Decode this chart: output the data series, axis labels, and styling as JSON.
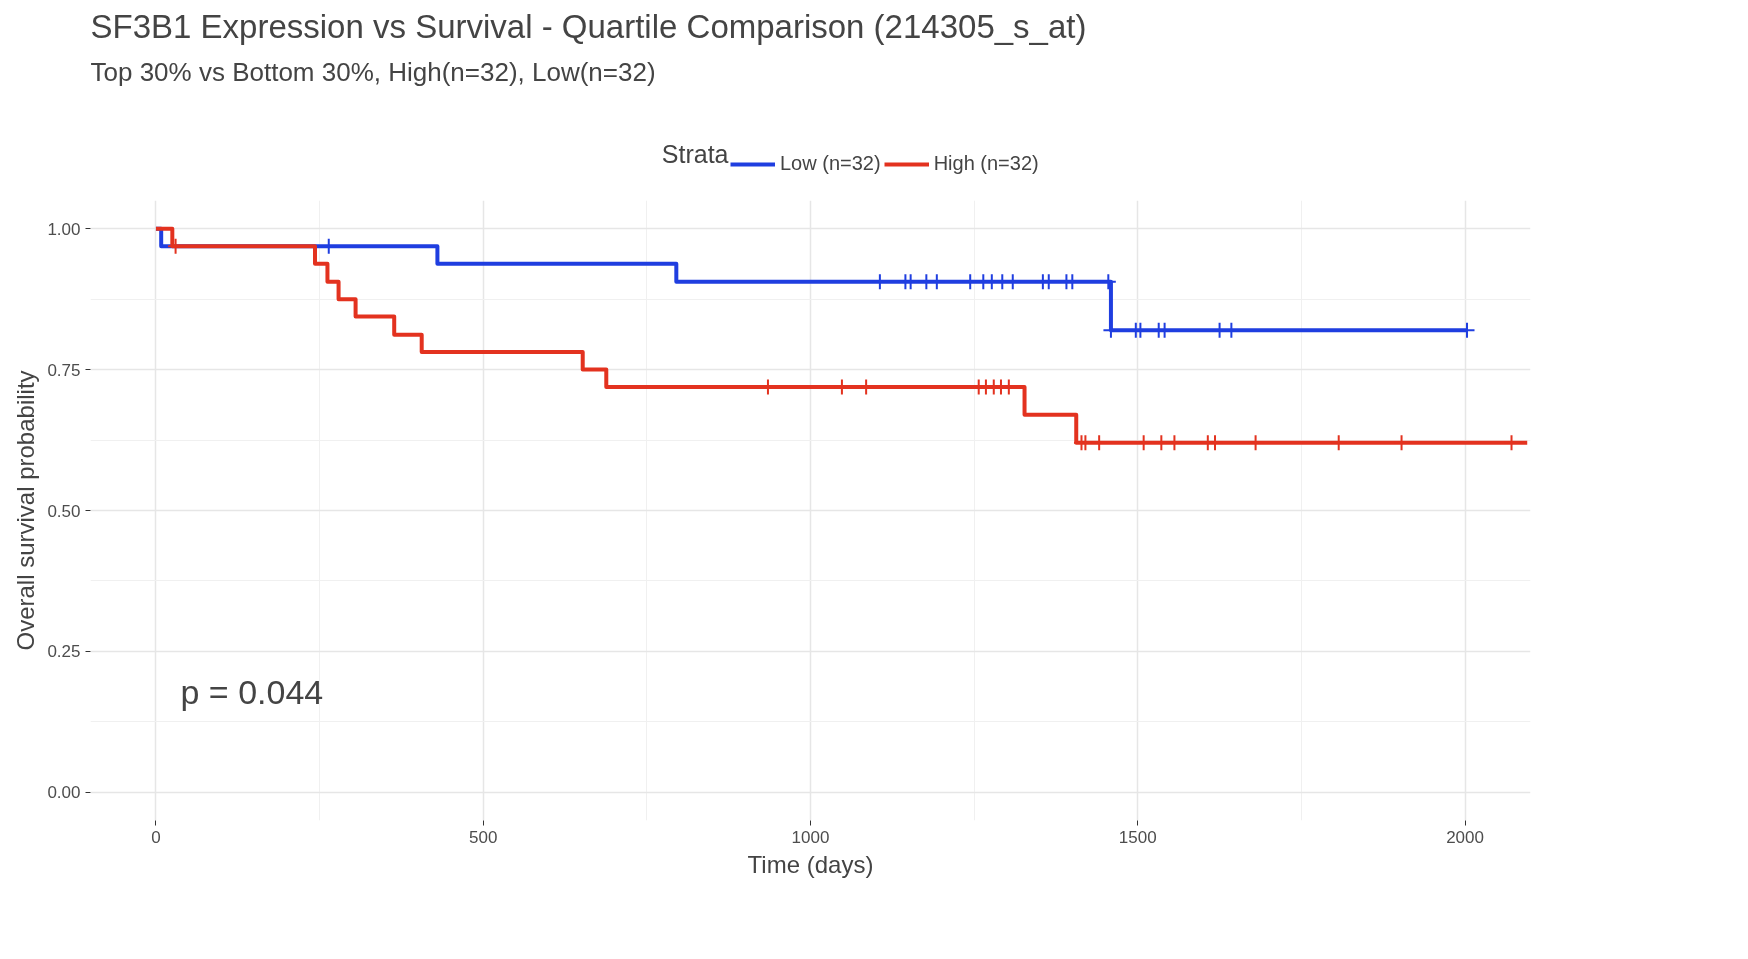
{
  "chart_data": {
    "type": "step",
    "title": "SF3B1 Expression vs Survival - Quartile Comparison (214305_s_at)",
    "subtitle": "Top 30% vs Bottom 30%, High(n=32), Low(n=32)",
    "xlabel": "Time (days)",
    "ylabel": "Overall survival probability",
    "legend_title": "Strata",
    "annotations": [
      "p = 0.044"
    ],
    "xlim": [
      -100,
      2100
    ],
    "ylim": [
      -0.05,
      1.05
    ],
    "xticks": [
      0,
      500,
      1000,
      1500,
      2000
    ],
    "yticks": [
      {
        "value": 0,
        "label": "0.00"
      },
      {
        "value": 0.25,
        "label": "0.25"
      },
      {
        "value": 0.5,
        "label": "0.50"
      },
      {
        "value": 0.75,
        "label": "0.75"
      },
      {
        "value": 1,
        "label": "1.00"
      }
    ],
    "grid": true,
    "legend": "top",
    "series": [
      {
        "name": "Low (n=32)",
        "color": "#1f3ee0",
        "x": [
          0,
          8,
          430,
          795,
          1459,
          2003
        ],
        "values": [
          1,
          0.969,
          0.938,
          0.906,
          0.82,
          0.82
        ]
      },
      {
        "name": "High (n=32)",
        "color": "#e3321f",
        "x": [
          0,
          25,
          243,
          262,
          279,
          305,
          364,
          406,
          652,
          688,
          1327,
          1406,
          2095
        ],
        "values": [
          1,
          0.969,
          0.938,
          0.906,
          0.875,
          0.844,
          0.812,
          0.781,
          0.75,
          0.719,
          0.67,
          0.62,
          0.62
        ]
      },
      {
        "type": "scatter",
        "marker": "cross",
        "color": "#1f3ee0",
        "x": [
          264,
          1106,
          1145,
          1153,
          1177,
          1193,
          1244,
          1264,
          1277,
          1293,
          1309,
          1355,
          1364,
          1391,
          1400,
          1455,
          1459,
          1497,
          1504,
          1532,
          1541,
          1625,
          1643,
          2003
        ],
        "values": [
          0.969,
          0.906,
          0.906,
          0.906,
          0.906,
          0.906,
          0.906,
          0.906,
          0.906,
          0.906,
          0.906,
          0.906,
          0.906,
          0.906,
          0.906,
          0.906,
          0.82,
          0.82,
          0.82,
          0.82,
          0.82,
          0.82,
          0.82,
          0.82
        ]
      },
      {
        "type": "scatter",
        "marker": "cross",
        "color": "#e3321f",
        "x": [
          30,
          935,
          1048,
          1085,
          1257,
          1268,
          1280,
          1291,
          1303,
          1414,
          1420,
          1441,
          1509,
          1536,
          1556,
          1607,
          1618,
          1680,
          1807,
          1903,
          2071
        ],
        "values": [
          0.969,
          0.719,
          0.719,
          0.719,
          0.719,
          0.719,
          0.719,
          0.719,
          0.719,
          0.62,
          0.62,
          0.62,
          0.62,
          0.62,
          0.62,
          0.62,
          0.62,
          0.62,
          0.62,
          0.62,
          0.62
        ]
      }
    ]
  }
}
